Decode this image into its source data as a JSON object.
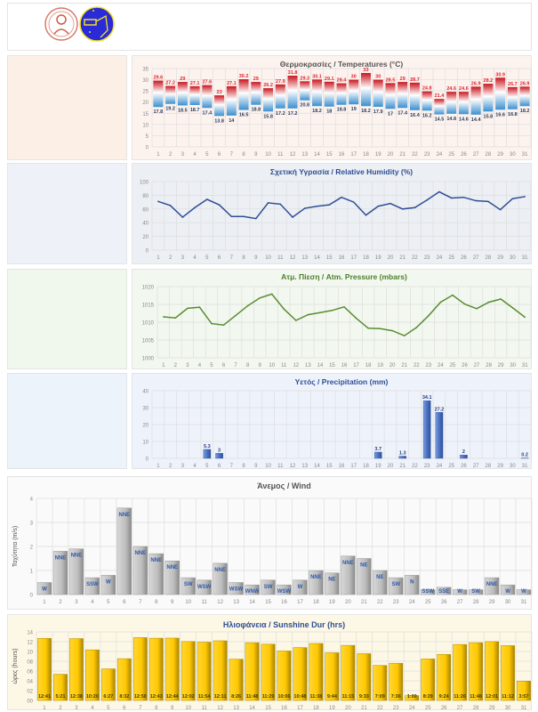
{
  "header": {
    "logos": [
      "university-seal",
      "meteorology-club-emblem"
    ]
  },
  "colors": {
    "temp_max": "#d9232e",
    "temp_min": "#3a8fd0",
    "humidity": "#2f4f94",
    "pressure": "#5b8c32",
    "precip": "#4a72c4",
    "wind": "#bdbdbd",
    "wind_label": "#2e58a8",
    "sun": "#ffcc00"
  },
  "chart_data": [
    {
      "type": "bar",
      "title": "Θερμοκρασίες / Temperatures (°C)",
      "categories": [
        "1",
        "2",
        "3",
        "4",
        "5",
        "6",
        "7",
        "8",
        "9",
        "10",
        "11",
        "12",
        "13",
        "14",
        "15",
        "16",
        "17",
        "18",
        "19",
        "20",
        "21",
        "22",
        "23",
        "24",
        "25",
        "26",
        "27",
        "28",
        "29",
        "30",
        "31"
      ],
      "yticks": [
        "0",
        "5",
        "10",
        "15",
        "20",
        "25",
        "30",
        "35"
      ],
      "ylim": [
        0,
        35
      ],
      "grid": true,
      "series": [
        {
          "name": "max",
          "values": [
            29.6,
            27.2,
            29.0,
            27.1,
            27.6,
            23.0,
            27.1,
            30.2,
            29.0,
            26.2,
            27.9,
            31.8,
            29.3,
            30.1,
            29.1,
            28.4,
            30.0,
            33.0,
            30.0,
            28.5,
            29.0,
            28.7,
            24.8,
            21.4,
            24.6,
            24.6,
            26.9,
            28.2,
            30.9,
            26.7,
            26.9
          ]
        },
        {
          "name": "min",
          "values": [
            17.8,
            19.2,
            18.5,
            18.7,
            17.4,
            13.8,
            14.0,
            16.5,
            18.8,
            15.8,
            17.2,
            17.2,
            20.8,
            18.2,
            18.0,
            18.8,
            19.0,
            18.2,
            17.9,
            17.0,
            17.4,
            16.4,
            16.2,
            14.5,
            14.8,
            14.6,
            14.4,
            15.8,
            16.6,
            16.8,
            18.2
          ]
        }
      ]
    },
    {
      "type": "line",
      "title": "Σχετική Υγρασία / Relative Humidity (%)",
      "categories": [
        "1",
        "2",
        "3",
        "4",
        "5",
        "6",
        "7",
        "8",
        "9",
        "10",
        "11",
        "12",
        "13",
        "14",
        "15",
        "16",
        "17",
        "18",
        "19",
        "20",
        "21",
        "22",
        "23",
        "24",
        "25",
        "26",
        "27",
        "28",
        "29",
        "30",
        "31"
      ],
      "yticks": [
        "0",
        "20",
        "40",
        "60",
        "80",
        "100"
      ],
      "ylim": [
        0,
        100
      ],
      "grid": true,
      "values": [
        71,
        65,
        48,
        62,
        74,
        66,
        49,
        49,
        46,
        69,
        67,
        48,
        61,
        64,
        66,
        77,
        70,
        51,
        64,
        68,
        60,
        62,
        73,
        85,
        76,
        77,
        72,
        71,
        59,
        75,
        78
      ]
    },
    {
      "type": "line",
      "title": "Ατμ. Πίεση / Atm. Pressure (mbars)",
      "categories": [
        "1",
        "2",
        "3",
        "4",
        "5",
        "6",
        "7",
        "8",
        "9",
        "10",
        "11",
        "12",
        "13",
        "14",
        "15",
        "16",
        "17",
        "18",
        "19",
        "20",
        "21",
        "22",
        "23",
        "24",
        "25",
        "26",
        "27",
        "28",
        "29",
        "30",
        "31"
      ],
      "yticks": [
        "1000",
        "1005",
        "1010",
        "1015",
        "1020"
      ],
      "ylim": [
        1000,
        1020
      ],
      "grid": true,
      "values": [
        1011.5,
        1011.2,
        1013.9,
        1014.2,
        1009.6,
        1009.2,
        1011.9,
        1014.6,
        1016.8,
        1017.9,
        1013.7,
        1010.5,
        1012.1,
        1012.7,
        1013.3,
        1014.3,
        1011.1,
        1008.3,
        1008.2,
        1007.6,
        1006.2,
        1008.5,
        1011.8,
        1015.6,
        1017.6,
        1015.1,
        1013.8,
        1015.6,
        1016.5,
        1014.0,
        1011.4
      ]
    },
    {
      "type": "bar",
      "title": "Υετός / Precipitation (mm)",
      "categories": [
        "1",
        "2",
        "3",
        "4",
        "5",
        "6",
        "7",
        "8",
        "9",
        "10",
        "11",
        "12",
        "13",
        "14",
        "15",
        "16",
        "17",
        "18",
        "19",
        "20",
        "21",
        "22",
        "23",
        "24",
        "25",
        "26",
        "27",
        "28",
        "29",
        "30",
        "31"
      ],
      "yticks": [
        "0",
        "10",
        "20",
        "30",
        "40"
      ],
      "ylim": [
        0,
        40
      ],
      "grid": true,
      "values": [
        0,
        0,
        0,
        0,
        5.3,
        3,
        0,
        0,
        0,
        0,
        0,
        0,
        0,
        0,
        0,
        0,
        0,
        0,
        3.7,
        0,
        1.3,
        0,
        34.1,
        27.2,
        0,
        2,
        0,
        0,
        0,
        0,
        0.2
      ]
    },
    {
      "type": "bar",
      "title": "Άνεμος / Wind",
      "ylabel": "Ταχύτητα (m/s)",
      "categories": [
        "1",
        "2",
        "3",
        "4",
        "5",
        "6",
        "7",
        "8",
        "9",
        "10",
        "11",
        "12",
        "13",
        "14",
        "15",
        "16",
        "17",
        "18",
        "19",
        "20",
        "21",
        "22",
        "23",
        "24",
        "25",
        "26",
        "27",
        "28",
        "29",
        "30",
        "31"
      ],
      "yticks": [
        "0",
        "1",
        "2",
        "3",
        "4"
      ],
      "ylim": [
        0,
        4
      ],
      "grid": true,
      "values": [
        0.5,
        1.8,
        1.9,
        0.7,
        0.8,
        3.6,
        2.0,
        1.7,
        1.4,
        0.7,
        0.6,
        1.3,
        0.5,
        0.4,
        0.6,
        0.4,
        0.6,
        1.0,
        0.9,
        1.6,
        1.5,
        1.0,
        0.7,
        0.8,
        0.2,
        0.3,
        0.2,
        0.2,
        0.7,
        0.4,
        0.2
      ],
      "directions": [
        "W",
        "NNE",
        "NNE",
        "SSW",
        "W",
        "NNE",
        "NNE",
        "NNE",
        "NNE",
        "SW",
        "WSW",
        "NNE",
        "WSW",
        "WNW",
        "SW",
        "WSW",
        "W",
        "NNE",
        "NE",
        "NNE",
        "NE",
        "NE",
        "SW",
        "N",
        "SSW",
        "SSE",
        "W",
        "SW",
        "NNE",
        "W",
        "W"
      ]
    },
    {
      "type": "bar",
      "title": "Ηλιοφάνεια / Sunshine Dur (hrs)",
      "ylabel": "ώρες (hours)",
      "categories": [
        "1",
        "2",
        "3",
        "4",
        "5",
        "6",
        "7",
        "8",
        "9",
        "10",
        "11",
        "12",
        "13",
        "14",
        "15",
        "16",
        "17",
        "18",
        "19",
        "20",
        "21",
        "22",
        "23",
        "24",
        "25",
        "26",
        "27",
        "28",
        "29",
        "30",
        "31"
      ],
      "yticks": [
        "00",
        "02",
        "04",
        "06",
        "08",
        "10",
        "12",
        "14"
      ],
      "ylim": [
        0,
        14
      ],
      "grid": true,
      "values": [
        "12:41",
        "5:21",
        "12:38",
        "10:20",
        "6:27",
        "8:32",
        "12:50",
        "12:43",
        "12:44",
        "12:02",
        "11:54",
        "12:11",
        "8:26",
        "11:48",
        "11:29",
        "10:06",
        "10:48",
        "11:38",
        "9:44",
        "11:15",
        "9:33",
        "7:09",
        "7:36",
        "1:00",
        "8:29",
        "9:24",
        "11:26",
        "11:48",
        "12:01",
        "11:12",
        "3:57"
      ]
    }
  ]
}
